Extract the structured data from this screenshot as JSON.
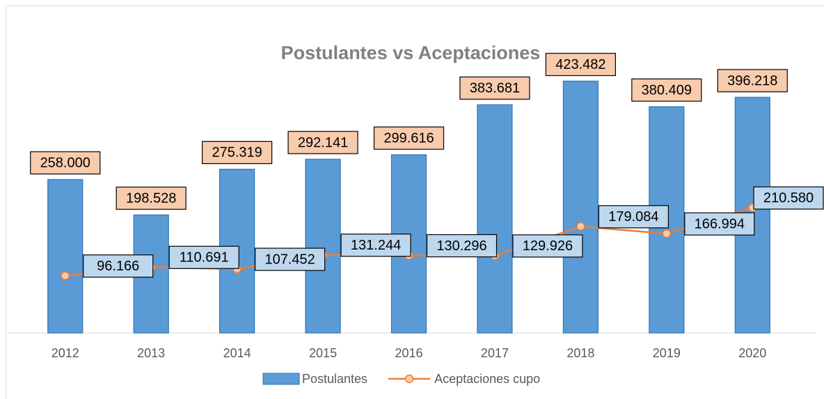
{
  "chart_data": {
    "type": "bar",
    "title": "Postulantes vs Aceptaciones",
    "categories": [
      "2012",
      "2013",
      "2014",
      "2015",
      "2016",
      "2017",
      "2018",
      "2019",
      "2020"
    ],
    "series": [
      {
        "name": "Postulantes",
        "type": "bar",
        "color": "#5b9bd5",
        "values": [
          258000,
          198528,
          275319,
          292141,
          299616,
          383681,
          423482,
          380409,
          396218
        ],
        "value_labels": [
          "258.000",
          "198.528",
          "275.319",
          "292.141",
          "299.616",
          "383.681",
          "423.482",
          "380.409",
          "396.218"
        ]
      },
      {
        "name": "Aceptaciones cupo",
        "type": "line",
        "color": "#ed7d31",
        "values": [
          96166,
          110691,
          107452,
          131244,
          130296,
          129926,
          179084,
          166994,
          210580
        ],
        "value_labels": [
          "96.166",
          "110.691",
          "107.452",
          "131.244",
          "130.296",
          "129.926",
          "179.084",
          "166.994",
          "210.580"
        ]
      }
    ],
    "ylim": [
      0,
      450000
    ],
    "grid": false,
    "legend": "bottom"
  }
}
